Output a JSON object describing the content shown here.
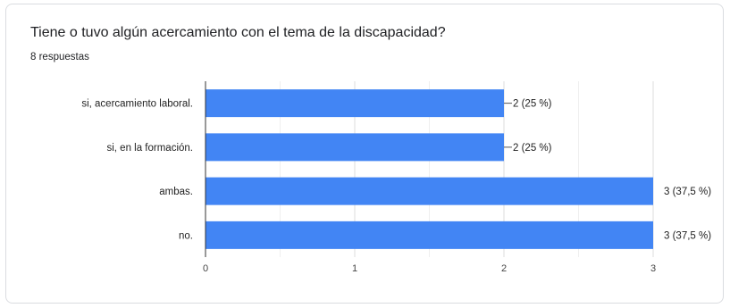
{
  "question": {
    "title": "Tiene o tuvo algún acercamiento con el tema de la discapacidad?",
    "responses_label": "8 respuestas"
  },
  "colors": {
    "bar": "#4285f4",
    "grid": "#e8e8e8",
    "axis": "#333333",
    "text": "#222222"
  },
  "chart_data": {
    "type": "bar",
    "orientation": "horizontal",
    "title": "",
    "xlabel": "",
    "ylabel": "",
    "categories": [
      "si, acercamiento laboral.",
      "si, en la formación.",
      "ambas.",
      "no."
    ],
    "values": [
      2,
      2,
      3,
      3
    ],
    "data_labels": [
      "2 (25 %)",
      "2 (25 %)",
      "3 (37,5 %)",
      "3 (37,5 %)"
    ],
    "xlim": [
      0,
      3
    ],
    "x_ticks": [
      0,
      1,
      2,
      3
    ],
    "grid": true,
    "legend": "none"
  }
}
